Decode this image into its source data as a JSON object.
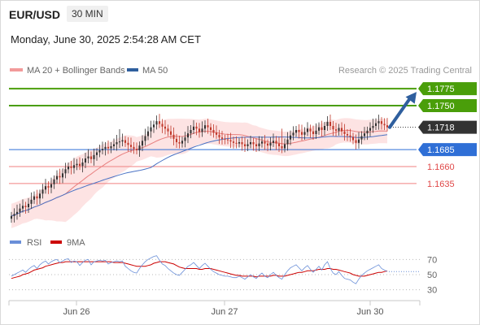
{
  "header": {
    "pair": "EUR/USD",
    "timeframe": "30 MIN",
    "datetime": "Monday, June 30, 2025 2:54:28 AM CET"
  },
  "legend": {
    "ma20": "MA 20 + Bollinger Bands",
    "ma50": "MA 50",
    "credit": "Research © 2025 Trading Central",
    "rsi": "RSI",
    "rsi_ma": "9MA"
  },
  "colors": {
    "resistance": "#4a9e0a",
    "support_line": "#f08080",
    "current_line": "#333333",
    "pivot": "#2f6fd6",
    "candle_up": "#333333",
    "candle_down": "#c0392b",
    "bollinger_fill": "#fde3e3",
    "ma20": "#e88080",
    "ma50": "#4a72c4",
    "rsi_line": "#6a8fd8",
    "rsi_ma_line": "#cc0000",
    "arrow": "#2f5f9e"
  },
  "chart_data": [
    {
      "type": "candlestick",
      "title": "EUR/USD",
      "x_ticks": [
        "Jun 26",
        "Jun 27",
        "Jun 30"
      ],
      "ylim": [
        1.1582,
        1.1792
      ],
      "levels": [
        {
          "value": 1.1775,
          "label": "1.1775",
          "kind": "resistance"
        },
        {
          "value": 1.175,
          "label": "1.1750",
          "kind": "resistance"
        },
        {
          "value": 1.1718,
          "label": "1.1718",
          "kind": "current"
        },
        {
          "value": 1.1685,
          "label": "1.1685",
          "kind": "pivot"
        },
        {
          "value": 1.166,
          "label": "1.1660",
          "kind": "support"
        },
        {
          "value": 1.1635,
          "label": "1.1635",
          "kind": "support"
        }
      ],
      "close": [
        1.1587,
        1.159,
        1.1593,
        1.1598,
        1.1602,
        1.16,
        1.1605,
        1.1611,
        1.1616,
        1.1613,
        1.162,
        1.1626,
        1.1631,
        1.1629,
        1.1634,
        1.1641,
        1.1646,
        1.1644,
        1.165,
        1.1656,
        1.166,
        1.1658,
        1.1662,
        1.1664,
        1.1661,
        1.1666,
        1.1672,
        1.1675,
        1.1671,
        1.1677,
        1.1681,
        1.1684,
        1.1686,
        1.1689,
        1.1687,
        1.169,
        1.1693,
        1.1696,
        1.1697,
        1.1699,
        1.1695,
        1.1692,
        1.1689,
        1.1686,
        1.1684,
        1.1691,
        1.1698,
        1.1705,
        1.1712,
        1.1718,
        1.1722,
        1.1727,
        1.1723,
        1.1719,
        1.1716,
        1.1712,
        1.1707,
        1.1701,
        1.1696,
        1.1694,
        1.1698,
        1.1703,
        1.1709,
        1.1714,
        1.1719,
        1.1716,
        1.1711,
        1.1716,
        1.1721,
        1.1718,
        1.1714,
        1.171,
        1.1707,
        1.1703,
        1.1701,
        1.17,
        1.1699,
        1.1697,
        1.1695,
        1.1694,
        1.1696,
        1.1693,
        1.169,
        1.1693,
        1.1696,
        1.1693,
        1.169,
        1.1694,
        1.1697,
        1.1694,
        1.1691,
        1.1695,
        1.1698,
        1.1694,
        1.169,
        1.1687,
        1.1693,
        1.17,
        1.1706,
        1.171,
        1.1714,
        1.1711,
        1.1707,
        1.1711,
        1.1716,
        1.1712,
        1.1708,
        1.1713,
        1.1718,
        1.1714,
        1.172,
        1.1726,
        1.172,
        1.1715,
        1.1713,
        1.1717,
        1.1712,
        1.1708,
        1.1706,
        1.1704,
        1.1699,
        1.1695,
        1.17,
        1.1705,
        1.1709,
        1.1713,
        1.1717,
        1.172,
        1.1724,
        1.1727,
        1.1723,
        1.1721,
        1.1718
      ]
    },
    {
      "type": "line",
      "title": "RSI",
      "series": [
        {
          "name": "RSI"
        },
        {
          "name": "9MA"
        }
      ],
      "y_ticks": [
        70,
        50,
        30
      ],
      "ylim": [
        20,
        80
      ],
      "rsi": [
        48,
        50,
        52,
        54,
        56,
        53,
        57,
        60,
        62,
        58,
        63,
        66,
        68,
        64,
        67,
        69,
        70,
        66,
        68,
        70,
        71,
        66,
        68,
        67,
        62,
        66,
        69,
        70,
        63,
        67,
        68,
        69,
        68,
        69,
        64,
        66,
        67,
        68,
        67,
        68,
        61,
        58,
        55,
        53,
        52,
        58,
        63,
        67,
        70,
        72,
        74,
        75,
        69,
        64,
        62,
        58,
        55,
        52,
        50,
        49,
        53,
        57,
        61,
        63,
        66,
        62,
        58,
        62,
        65,
        61,
        57,
        54,
        52,
        50,
        49,
        48,
        48,
        47,
        46,
        46,
        48,
        46,
        44,
        47,
        50,
        47,
        45,
        49,
        52,
        48,
        46,
        50,
        53,
        49,
        46,
        44,
        50,
        55,
        59,
        61,
        63,
        59,
        55,
        59,
        62,
        57,
        53,
        57,
        61,
        56,
        63,
        67,
        58,
        52,
        50,
        54,
        49,
        45,
        44,
        43,
        40,
        38,
        44,
        49,
        52,
        55,
        57,
        59,
        61,
        63,
        58,
        56,
        54
      ],
      "rsi_ma": [
        45,
        46,
        47,
        48,
        50,
        51,
        52,
        54,
        56,
        57,
        58,
        59,
        61,
        62,
        63,
        64,
        65,
        66,
        66,
        67,
        67,
        67,
        67,
        67,
        67,
        67,
        67,
        67,
        67,
        67,
        67,
        67,
        67,
        67,
        67,
        67,
        66,
        66,
        66,
        66,
        65,
        64,
        63,
        62,
        61,
        61,
        61,
        61,
        62,
        63,
        65,
        66,
        67,
        67,
        67,
        66,
        65,
        64,
        62,
        60,
        59,
        58,
        58,
        58,
        58,
        58,
        57,
        57,
        58,
        58,
        58,
        57,
        56,
        55,
        54,
        53,
        52,
        51,
        50,
        49,
        49,
        48,
        48,
        48,
        48,
        48,
        47,
        48,
        48,
        48,
        48,
        48,
        49,
        49,
        48,
        48,
        48,
        49,
        50,
        51,
        52,
        53,
        53,
        54,
        55,
        55,
        55,
        56,
        57,
        57,
        57,
        58,
        58,
        57,
        57,
        56,
        55,
        54,
        53,
        52,
        50,
        49,
        48,
        48,
        48,
        49,
        50,
        51,
        52,
        53,
        53,
        54,
        55
      ]
    }
  ]
}
